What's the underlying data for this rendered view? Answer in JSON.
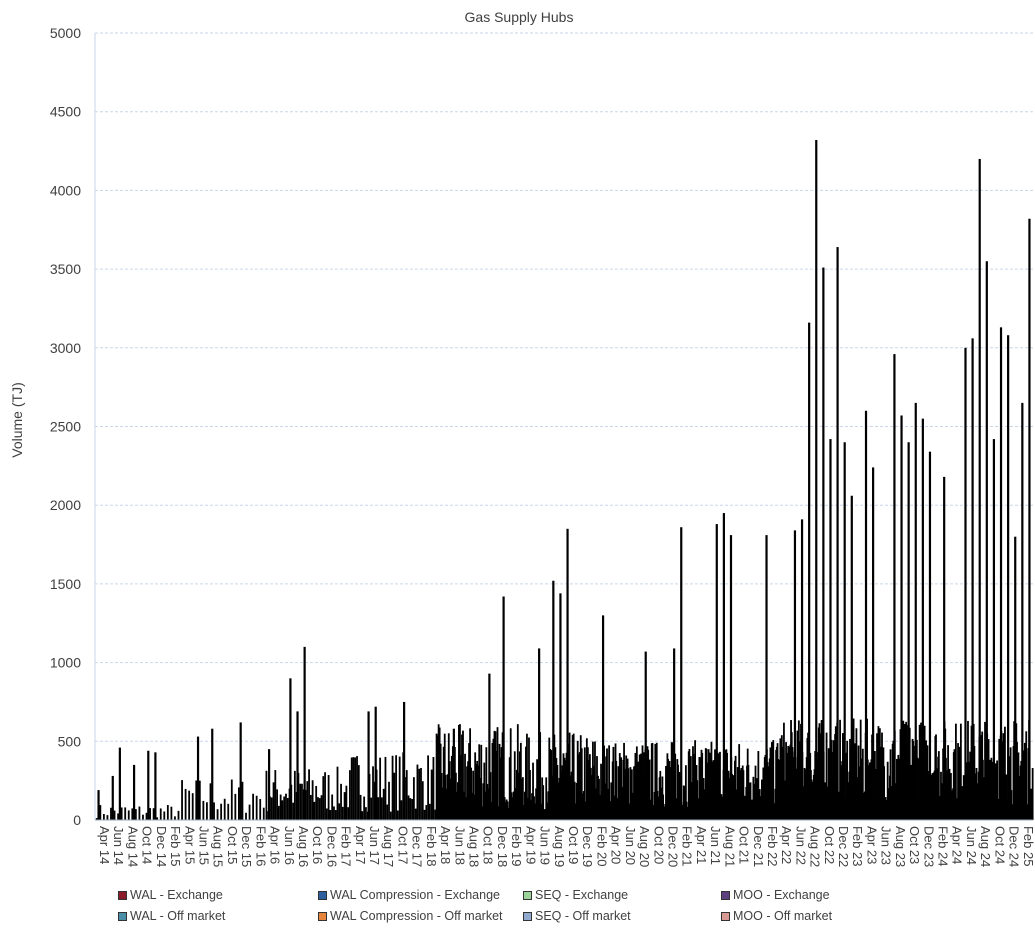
{
  "chart_data": {
    "type": "bar",
    "title": "Gas Supply Hubs",
    "xlabel": "",
    "ylabel": "Volume (TJ)",
    "ylim": [
      0,
      5000
    ],
    "yticks": [
      0,
      500,
      1000,
      1500,
      2000,
      2500,
      3000,
      3500,
      4000,
      4500,
      5000
    ],
    "grid": true,
    "legend_position": "bottom",
    "x_tick_labels": [
      "Apr 14",
      "Jun 14",
      "Aug 14",
      "Oct 14",
      "Dec 14",
      "Feb 15",
      "Apr 15",
      "Jun 15",
      "Aug 15",
      "Oct 15",
      "Dec 15",
      "Feb 16",
      "Apr 16",
      "Jun 16",
      "Aug 16",
      "Oct 16",
      "Dec 16",
      "Feb 17",
      "Apr 17",
      "Jun 17",
      "Aug 17",
      "Oct 17",
      "Dec 17",
      "Feb 18",
      "Apr 18",
      "Jun 18",
      "Aug 18",
      "Oct 18",
      "Dec 18",
      "Feb 19",
      "Apr 19",
      "Jun 19",
      "Aug 19",
      "Oct 19",
      "Dec 19",
      "Feb 20",
      "Apr 20",
      "Jun 20",
      "Aug 20",
      "Oct 20",
      "Dec 20",
      "Feb 21",
      "Apr 21",
      "Jun 21",
      "Aug 21",
      "Oct 21",
      "Dec 21",
      "Feb 22",
      "Apr 22",
      "Jun 22",
      "Aug 22",
      "Oct 22",
      "Dec 22",
      "Feb 23",
      "Apr 23",
      "Jun 23",
      "Aug 23",
      "Oct 23",
      "Dec 23",
      "Feb 24",
      "Apr 24",
      "Jun 24",
      "Aug 24",
      "Oct 24",
      "Dec 24",
      "Feb 25"
    ],
    "series": [
      {
        "name": "WAL - Exchange",
        "color": "#8b1a2b"
      },
      {
        "name": "WAL Compression - Exchange",
        "color": "#2e5f9e"
      },
      {
        "name": "SEQ - Exchange",
        "color": "#9bd39b"
      },
      {
        "name": "MOO - Exchange",
        "color": "#5b3f7e"
      },
      {
        "name": "WAL - Off market",
        "color": "#4a8ea8"
      },
      {
        "name": "WAL Compression - Off market",
        "color": "#e8853c"
      },
      {
        "name": "SEQ - Off market",
        "color": "#8fa9cf"
      },
      {
        "name": "MOO - Off market",
        "color": "#d99a93"
      }
    ],
    "bar_color": "#000000",
    "total_daily_volume_peaks": [
      {
        "x": "Apr 14",
        "y": 190
      },
      {
        "x": "Jun 14",
        "y": 280
      },
      {
        "x": "Jul 14",
        "y": 460
      },
      {
        "x": "Sep 14",
        "y": 350
      },
      {
        "x": "Nov 14",
        "y": 440
      },
      {
        "x": "Dec 14",
        "y": 430
      },
      {
        "x": "Jun 15",
        "y": 530
      },
      {
        "x": "Aug 15",
        "y": 580
      },
      {
        "x": "Dec 15",
        "y": 620
      },
      {
        "x": "Apr 16",
        "y": 450
      },
      {
        "x": "Jul 16",
        "y": 900
      },
      {
        "x": "Aug 16",
        "y": 690
      },
      {
        "x": "Sep 16",
        "y": 1100
      },
      {
        "x": "Jun 17",
        "y": 690
      },
      {
        "x": "Jul 17",
        "y": 720
      },
      {
        "x": "Nov 17",
        "y": 750
      },
      {
        "x": "Jun 18",
        "y": 580
      },
      {
        "x": "Nov 18",
        "y": 930
      },
      {
        "x": "Jan 19",
        "y": 1420
      },
      {
        "x": "Jun 19",
        "y": 1090
      },
      {
        "x": "Aug 19",
        "y": 1520
      },
      {
        "x": "Sep 19",
        "y": 1440
      },
      {
        "x": "Oct 19",
        "y": 1850
      },
      {
        "x": "Mar 20",
        "y": 1300
      },
      {
        "x": "Sep 20",
        "y": 1070
      },
      {
        "x": "Jan 21",
        "y": 1090
      },
      {
        "x": "Feb 21",
        "y": 1860
      },
      {
        "x": "Jul 21",
        "y": 1880
      },
      {
        "x": "Aug 21",
        "y": 1950
      },
      {
        "x": "Sep 21",
        "y": 1810
      },
      {
        "x": "Feb 22",
        "y": 1810
      },
      {
        "x": "Jun 22",
        "y": 1840
      },
      {
        "x": "Jul 22",
        "y": 1910
      },
      {
        "x": "Aug 22",
        "y": 3160
      },
      {
        "x": "Sep 22",
        "y": 4320
      },
      {
        "x": "Oct 22",
        "y": 3510
      },
      {
        "x": "Nov 22",
        "y": 2420
      },
      {
        "x": "Dec 22",
        "y": 3640
      },
      {
        "x": "Jan 23",
        "y": 2400
      },
      {
        "x": "Feb 23",
        "y": 2060
      },
      {
        "x": "Apr 23",
        "y": 2600
      },
      {
        "x": "May 23",
        "y": 2240
      },
      {
        "x": "Aug 23",
        "y": 2960
      },
      {
        "x": "Sep 23",
        "y": 2570
      },
      {
        "x": "Oct 23",
        "y": 2400
      },
      {
        "x": "Nov 23",
        "y": 2650
      },
      {
        "x": "Dec 23",
        "y": 2550
      },
      {
        "x": "Jan 24",
        "y": 2340
      },
      {
        "x": "Mar 24",
        "y": 2180
      },
      {
        "x": "Jun 24",
        "y": 3000
      },
      {
        "x": "Jul 24",
        "y": 3060
      },
      {
        "x": "Aug 24",
        "y": 4200
      },
      {
        "x": "Sep 24",
        "y": 3550
      },
      {
        "x": "Oct 24",
        "y": 2420
      },
      {
        "x": "Nov 24",
        "y": 3130
      },
      {
        "x": "Dec 24",
        "y": 3080
      },
      {
        "x": "Jan 25",
        "y": 1800
      },
      {
        "x": "Feb 25",
        "y": 2650
      },
      {
        "x": "Mar 25",
        "y": 3820
      }
    ]
  }
}
